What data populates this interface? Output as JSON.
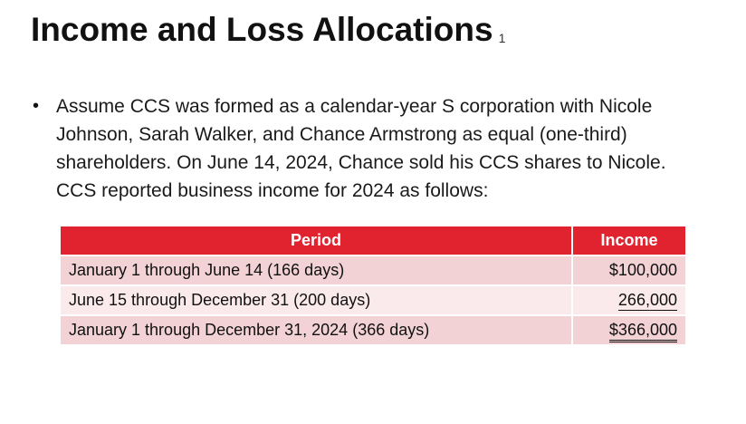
{
  "slide": {
    "title": "Income and Loss Allocations",
    "footnote_marker": "1",
    "bullet_marker": "•",
    "bullet_text": "Assume CCS was formed as a calendar-year S corporation with Nicole Johnson, Sarah Walker, and Chance Armstrong as equal (one-third) shareholders. On June 14, 2024, Chance sold his CCS shares to Nicole. CCS reported business income for 2024 as follows:"
  },
  "table": {
    "headers": [
      "Period",
      "Income"
    ],
    "rows": [
      {
        "period": "January 1 through June 14 (166 days)",
        "income": "$100,000",
        "underline": "none"
      },
      {
        "period": "June 15 through December 31 (200 days)",
        "income": "266,000",
        "underline": "single"
      },
      {
        "period": "January 1 through December 31, 2024 (366 days)",
        "income": "$366,000",
        "underline": "double"
      }
    ]
  },
  "colors": {
    "header_bg": "#e0232f",
    "header_text": "#ffffff",
    "row_odd_bg": "#f2d2d5",
    "row_even_bg": "#fbeaec",
    "body_text": "#111111"
  }
}
